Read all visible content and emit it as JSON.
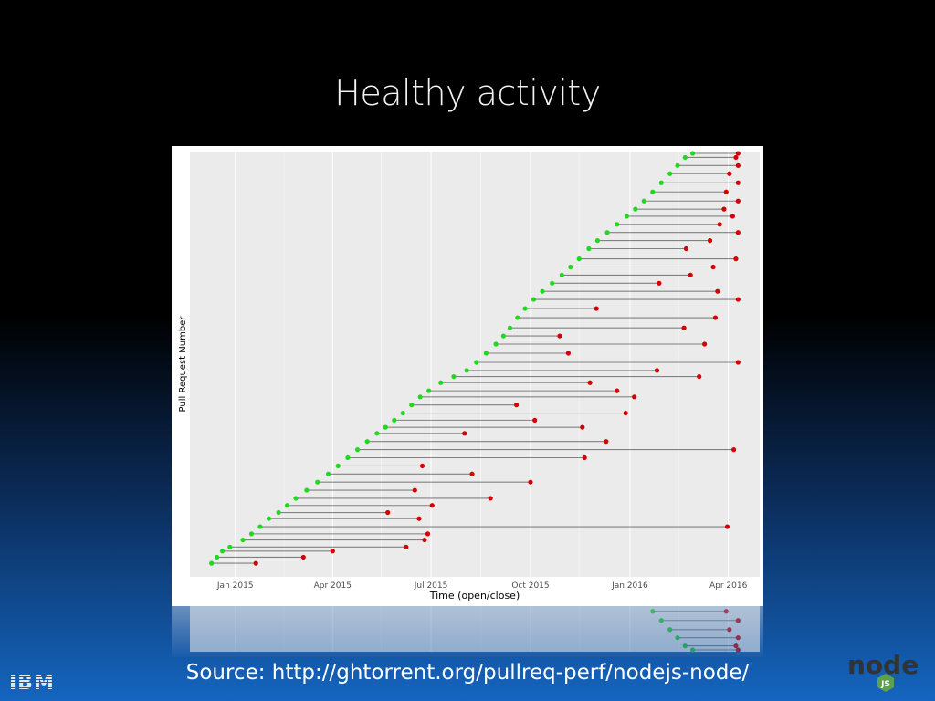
{
  "slide": {
    "title": "Healthy activity",
    "source": "Source: http://ghtorrent.org/pullreq-perf/nodejs-node/"
  },
  "logos": {
    "ibm": "IBM",
    "node_word": "node",
    "node_badge": "JS"
  },
  "colors": {
    "open": "#1ed91e",
    "close": "#d40000",
    "line": "#000000",
    "panel": "#ebebeb",
    "node_dark": "#333333",
    "node_green": "#5fa04e"
  },
  "chart_data": {
    "type": "scatter",
    "xlabel": "Time (open/close)",
    "ylabel": "Pull Request Number",
    "x_ticks": [
      "Jan 2015",
      "Apr 2015",
      "Jul 2015",
      "Oct 2015",
      "Jan 2016",
      "Apr 2016"
    ],
    "x_range": [
      "2014-11-20",
      "2016-04-30"
    ],
    "grid": true,
    "series": [
      {
        "role": "open",
        "points": [
          [
            "2014-12-10",
            8
          ],
          [
            "2014-12-15",
            14
          ],
          [
            "2014-12-20",
            20
          ],
          [
            "2014-12-27",
            24
          ],
          [
            "2015-01-08",
            31
          ],
          [
            "2015-01-16",
            37
          ],
          [
            "2015-01-24",
            44
          ],
          [
            "2015-02-01",
            52
          ],
          [
            "2015-02-10",
            58
          ],
          [
            "2015-02-18",
            65
          ],
          [
            "2015-02-26",
            72
          ],
          [
            "2015-03-08",
            80
          ],
          [
            "2015-03-18",
            88
          ],
          [
            "2015-03-28",
            96
          ],
          [
            "2015-04-06",
            104
          ],
          [
            "2015-04-15",
            112
          ],
          [
            "2015-04-24",
            120
          ],
          [
            "2015-05-03",
            128
          ],
          [
            "2015-05-12",
            136
          ],
          [
            "2015-05-20",
            142
          ],
          [
            "2015-05-28",
            149
          ],
          [
            "2015-06-05",
            156
          ],
          [
            "2015-06-13",
            164
          ],
          [
            "2015-06-21",
            172
          ],
          [
            "2015-06-29",
            178
          ],
          [
            "2015-07-10",
            186
          ],
          [
            "2015-07-22",
            192
          ],
          [
            "2015-08-03",
            198
          ],
          [
            "2015-08-12",
            206
          ],
          [
            "2015-08-21",
            215
          ],
          [
            "2015-08-30",
            224
          ],
          [
            "2015-09-06",
            232
          ],
          [
            "2015-09-12",
            240
          ],
          [
            "2015-09-19",
            250
          ],
          [
            "2015-09-26",
            259
          ],
          [
            "2015-10-04",
            268
          ],
          [
            "2015-10-12",
            276
          ],
          [
            "2015-10-21",
            284
          ],
          [
            "2015-10-30",
            292
          ],
          [
            "2015-11-07",
            300
          ],
          [
            "2015-11-15",
            308
          ],
          [
            "2015-11-24",
            318
          ],
          [
            "2015-12-02",
            326
          ],
          [
            "2015-12-11",
            334
          ],
          [
            "2015-12-20",
            342
          ],
          [
            "2015-12-29",
            350
          ],
          [
            "2016-01-06",
            357
          ],
          [
            "2016-01-14",
            365
          ],
          [
            "2016-01-22",
            374
          ],
          [
            "2016-01-30",
            383
          ],
          [
            "2016-02-07",
            392
          ],
          [
            "2016-02-14",
            400
          ],
          [
            "2016-02-21",
            408
          ],
          [
            "2016-02-28",
            412
          ]
        ]
      },
      {
        "role": "close",
        "points": [
          [
            "2015-01-20",
            8
          ],
          [
            "2015-03-05",
            14
          ],
          [
            "2015-04-01",
            20
          ],
          [
            "2015-06-08",
            24
          ],
          [
            "2015-06-25",
            31
          ],
          [
            "2015-06-28",
            37
          ],
          [
            "2016-03-31",
            44
          ],
          [
            "2015-06-20",
            52
          ],
          [
            "2015-05-22",
            58
          ],
          [
            "2015-07-02",
            65
          ],
          [
            "2015-08-25",
            72
          ],
          [
            "2015-06-16",
            80
          ],
          [
            "2015-10-01",
            88
          ],
          [
            "2015-08-08",
            96
          ],
          [
            "2015-06-23",
            104
          ],
          [
            "2015-11-20",
            112
          ],
          [
            "2016-04-06",
            120
          ],
          [
            "2015-12-10",
            128
          ],
          [
            "2015-08-01",
            136
          ],
          [
            "2015-11-18",
            142
          ],
          [
            "2015-10-05",
            149
          ],
          [
            "2015-12-28",
            156
          ],
          [
            "2015-09-18",
            164
          ],
          [
            "2016-01-05",
            172
          ],
          [
            "2015-12-20",
            178
          ],
          [
            "2015-11-25",
            186
          ],
          [
            "2016-03-05",
            192
          ],
          [
            "2016-01-26",
            198
          ],
          [
            "2016-04-10",
            206
          ],
          [
            "2015-11-05",
            215
          ],
          [
            "2016-03-10",
            224
          ],
          [
            "2015-10-28",
            232
          ],
          [
            "2016-02-20",
            240
          ],
          [
            "2016-03-20",
            250
          ],
          [
            "2015-12-01",
            259
          ],
          [
            "2016-04-10",
            268
          ],
          [
            "2016-03-22",
            276
          ],
          [
            "2016-01-28",
            284
          ],
          [
            "2016-02-26",
            292
          ],
          [
            "2016-03-18",
            300
          ],
          [
            "2016-04-08",
            308
          ],
          [
            "2016-02-22",
            318
          ],
          [
            "2016-03-15",
            326
          ],
          [
            "2016-04-10",
            334
          ],
          [
            "2016-03-24",
            342
          ],
          [
            "2016-04-05",
            350
          ],
          [
            "2016-03-28",
            357
          ],
          [
            "2016-04-10",
            365
          ],
          [
            "2016-03-30",
            374
          ],
          [
            "2016-04-10",
            383
          ],
          [
            "2016-04-02",
            392
          ],
          [
            "2016-04-10",
            400
          ],
          [
            "2016-04-08",
            408
          ],
          [
            "2016-04-10",
            412
          ]
        ]
      }
    ]
  }
}
